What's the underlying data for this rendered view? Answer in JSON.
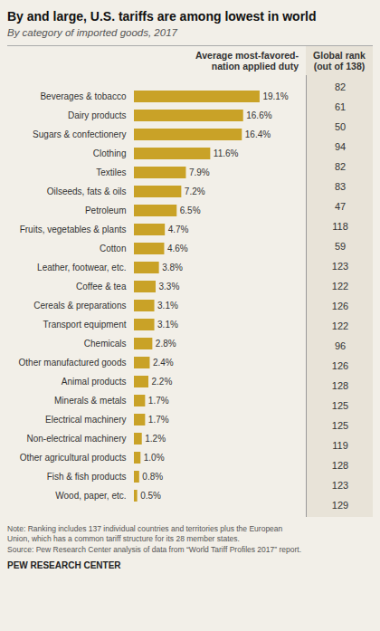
{
  "chart_data": {
    "type": "bar",
    "orientation": "horizontal",
    "title": "By and large, U.S. tariffs are among lowest in world",
    "subtitle": "By category of imported goods, 2017",
    "xlabel": "Average most-favored-\nnation applied duty",
    "categories": [
      "Beverages & tobacco",
      "Dairy products",
      "Sugars & confectionery",
      "Clothing",
      "Textiles",
      "Oilseeds, fats & oils",
      "Petroleum",
      "Fruits, vegetables & plants",
      "Cotton",
      "Leather, footwear, etc.",
      "Coffee & tea",
      "Cereals & preparations",
      "Transport equipment",
      "Chemicals",
      "Other manufactured goods",
      "Animal products",
      "Minerals & metals",
      "Electrical machinery",
      "Non-electrical machinery",
      "Other agricultural products",
      "Fish & fish products",
      "Wood, paper, etc."
    ],
    "values": [
      19.1,
      16.6,
      16.4,
      11.6,
      7.9,
      7.2,
      6.5,
      4.7,
      4.6,
      3.8,
      3.3,
      3.1,
      3.1,
      2.8,
      2.4,
      2.2,
      1.7,
      1.7,
      1.2,
      1.0,
      0.8,
      0.5
    ],
    "value_labels": [
      "19.1%",
      "16.6%",
      "16.4%",
      "11.6%",
      "7.9%",
      "7.2%",
      "6.5%",
      "4.7%",
      "4.6%",
      "3.8%",
      "3.3%",
      "3.1%",
      "3.1%",
      "2.8%",
      "2.4%",
      "2.2%",
      "1.7%",
      "1.7%",
      "1.2%",
      "1.0%",
      "0.8%",
      "0.5%"
    ],
    "ranks_label": "Global rank\n(out of 138)",
    "ranks": [
      82,
      61,
      50,
      94,
      82,
      83,
      47,
      118,
      59,
      123,
      122,
      126,
      122,
      96,
      126,
      128,
      125,
      125,
      119,
      128,
      123,
      129
    ],
    "color": "#C9A227",
    "data_labels": true,
    "xlim": [
      0,
      22
    ],
    "xticks": [],
    "tick_labels": "y",
    "note": "Note: Ranking includes 137 individual countries and territories plus the European\nUnion, which has a common tariff structure for its 28 member states.\nSource: Pew Research Center analysis of data from “World Tariff Profiles 2017” report.",
    "footer": "PEW RESEARCH CENTER"
  }
}
